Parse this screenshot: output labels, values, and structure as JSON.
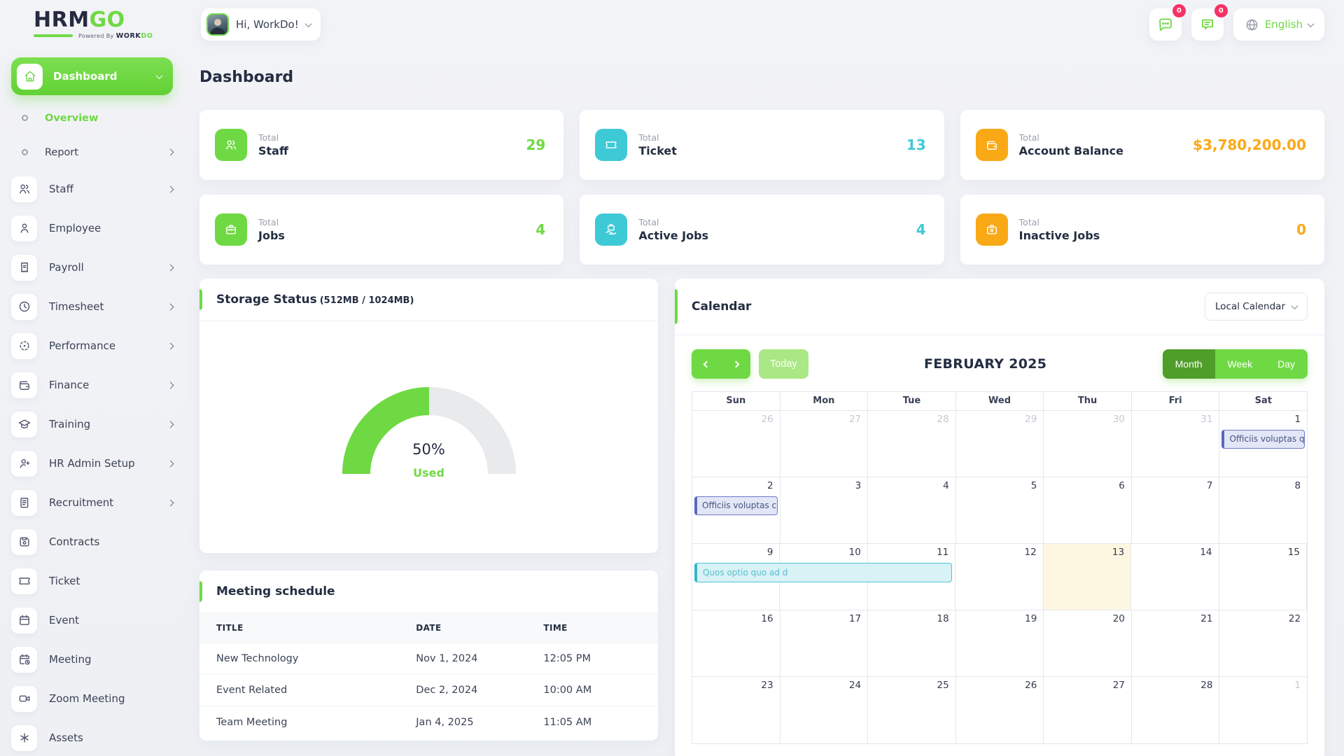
{
  "header": {
    "logo": {
      "text_primary": "HRM",
      "text_secondary": "GO",
      "powered_prefix": "Powered By",
      "powered_brand_primary": "WORK",
      "powered_brand_secondary": "DO"
    },
    "user": {
      "greeting": "Hi, WorkDo!"
    },
    "actions": {
      "messages_badge": "0",
      "notifications_badge": "0",
      "language": "English"
    }
  },
  "sidebar": {
    "items": [
      {
        "label": "Dashboard",
        "icon": "home",
        "style": "primary",
        "expandable": true
      },
      {
        "label": "Overview",
        "icon": "dot",
        "style": "sub",
        "selected": true
      },
      {
        "label": "Report",
        "icon": "dot",
        "style": "sub",
        "expandable": true
      },
      {
        "label": "Staff",
        "icon": "users",
        "expandable": true
      },
      {
        "label": "Employee",
        "icon": "user"
      },
      {
        "label": "Payroll",
        "icon": "receipt",
        "expandable": true
      },
      {
        "label": "Timesheet",
        "icon": "clock",
        "expandable": true
      },
      {
        "label": "Performance",
        "icon": "target",
        "expandable": true
      },
      {
        "label": "Finance",
        "icon": "wallet",
        "expandable": true
      },
      {
        "label": "Training",
        "icon": "graduation",
        "expandable": true
      },
      {
        "label": "HR Admin Setup",
        "icon": "user-plus",
        "expandable": true
      },
      {
        "label": "Recruitment",
        "icon": "document",
        "expandable": true
      },
      {
        "label": "Contracts",
        "icon": "save"
      },
      {
        "label": "Ticket",
        "icon": "ticket"
      },
      {
        "label": "Event",
        "icon": "calendar"
      },
      {
        "label": "Meeting",
        "icon": "calendar-clock"
      },
      {
        "label": "Zoom Meeting",
        "icon": "video"
      },
      {
        "label": "Assets",
        "icon": "asterisk"
      }
    ]
  },
  "page": {
    "title": "Dashboard"
  },
  "stats": [
    {
      "prefix": "Total",
      "label": "Staff",
      "value": "29",
      "color": "#6fd943",
      "icon": "users"
    },
    {
      "prefix": "Total",
      "label": "Ticket",
      "value": "13",
      "color": "#3ec9d6",
      "icon": "ticket"
    },
    {
      "prefix": "Total",
      "label": "Account Balance",
      "value": "$3,780,200.00",
      "color": "#f9a916",
      "icon": "wallet"
    },
    {
      "prefix": "Total",
      "label": "Jobs",
      "value": "4",
      "color": "#6fd943",
      "icon": "briefcase"
    },
    {
      "prefix": "Total",
      "label": "Active Jobs",
      "value": "4",
      "color": "#3ec9d6",
      "icon": "briefcase-hand"
    },
    {
      "prefix": "Total",
      "label": "Inactive Jobs",
      "value": "0",
      "color": "#f9a916",
      "icon": "briefcase-off"
    }
  ],
  "storage": {
    "title": "Storage Status",
    "subtitle": "(512MB / 1024MB)",
    "percent": 50,
    "percent_label": "50%",
    "used_label": "Used"
  },
  "calendar": {
    "title": "Calendar",
    "source_dropdown": "Local Calendar",
    "today_button": "Today",
    "month_label": "FEBRUARY 2025",
    "views": [
      "Month",
      "Week",
      "Day"
    ],
    "active_view": "Month",
    "day_headers": [
      "Sun",
      "Mon",
      "Tue",
      "Wed",
      "Thu",
      "Fri",
      "Sat"
    ],
    "weeks": [
      {
        "cells": [
          {
            "day": "26",
            "muted": true
          },
          {
            "day": "27",
            "muted": true
          },
          {
            "day": "28",
            "muted": true
          },
          {
            "day": "29",
            "muted": true
          },
          {
            "day": "30",
            "muted": true
          },
          {
            "day": "31",
            "muted": true
          },
          {
            "day": "1",
            "event": {
              "text": "Officiis voluptas qu",
              "color": "purple"
            }
          }
        ]
      },
      {
        "cells": [
          {
            "day": "2",
            "event": {
              "text": "Officiis voluptas c",
              "color": "purple"
            }
          },
          {
            "day": "3"
          },
          {
            "day": "4"
          },
          {
            "day": "5"
          },
          {
            "day": "6"
          },
          {
            "day": "7"
          },
          {
            "day": "8"
          }
        ]
      },
      {
        "cells": [
          {
            "day": "9"
          },
          {
            "day": "10"
          },
          {
            "day": "11"
          },
          {
            "day": "12"
          },
          {
            "day": "13",
            "today": true
          },
          {
            "day": "14"
          },
          {
            "day": "15"
          }
        ],
        "span_event": {
          "text": "Quos optio quo ad d",
          "start": 0,
          "span": 3,
          "color": "cyan"
        }
      },
      {
        "cells": [
          {
            "day": "16"
          },
          {
            "day": "17"
          },
          {
            "day": "18"
          },
          {
            "day": "19"
          },
          {
            "day": "20"
          },
          {
            "day": "21"
          },
          {
            "day": "22"
          }
        ]
      },
      {
        "cells": [
          {
            "day": "23"
          },
          {
            "day": "24"
          },
          {
            "day": "25"
          },
          {
            "day": "26"
          },
          {
            "day": "27"
          },
          {
            "day": "28"
          },
          {
            "day": "1",
            "muted": true
          }
        ]
      }
    ]
  },
  "meetings": {
    "title": "Meeting schedule",
    "columns": [
      "TITLE",
      "DATE",
      "TIME"
    ],
    "rows": [
      [
        "New Technology",
        "Nov 1, 2024",
        "12:05 PM"
      ],
      [
        "Event Related",
        "Dec 2, 2024",
        "10:00 AM"
      ],
      [
        "Team Meeting",
        "Jan 4, 2025",
        "11:05 AM"
      ]
    ]
  }
}
